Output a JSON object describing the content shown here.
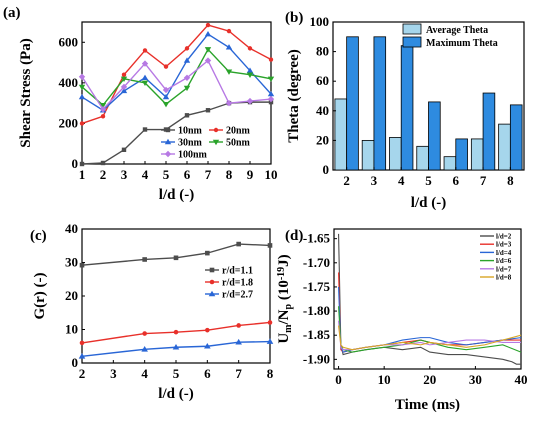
{
  "chart_data": [
    {
      "panel": "(a)",
      "type": "line",
      "xlabel": "l/d (-)",
      "ylabel": "Shear Stress (Pa)",
      "xlim": [
        1,
        10
      ],
      "ylim": [
        0,
        700
      ],
      "xticks": [
        1,
        2,
        3,
        4,
        5,
        6,
        7,
        8,
        9,
        10
      ],
      "yticks": [
        0,
        200,
        400,
        600
      ],
      "legend_position": "bottom-right",
      "x": [
        1,
        2,
        3,
        4,
        5,
        6,
        7,
        8,
        9,
        10
      ],
      "series": [
        {
          "name": "10nm",
          "color": "#4d4d4d",
          "marker": "square",
          "values": [
            0,
            5,
            70,
            170,
            170,
            240,
            265,
            300,
            305,
            305
          ]
        },
        {
          "name": "20nm",
          "color": "#e8302a",
          "marker": "circle",
          "values": [
            200,
            235,
            440,
            560,
            480,
            570,
            685,
            655,
            570,
            515
          ]
        },
        {
          "name": "30nm",
          "color": "#2966d6",
          "marker": "triangle",
          "values": [
            330,
            265,
            360,
            425,
            330,
            510,
            640,
            575,
            460,
            345
          ]
        },
        {
          "name": "50nm",
          "color": "#2aa32a",
          "marker": "triangle-down",
          "values": [
            380,
            290,
            420,
            400,
            295,
            375,
            565,
            455,
            440,
            420
          ]
        },
        {
          "name": "100nm",
          "color": "#b779e4",
          "marker": "diamond",
          "values": [
            430,
            270,
            380,
            495,
            365,
            425,
            510,
            300,
            310,
            320
          ]
        }
      ]
    },
    {
      "panel": "(b)",
      "type": "bar",
      "xlabel": "l/d (-)",
      "ylabel": "Theta (degree)",
      "ylim": [
        0,
        100
      ],
      "yticks": [
        0,
        20,
        40,
        60,
        80,
        100
      ],
      "categories": [
        "2",
        "3",
        "4",
        "5",
        "6",
        "7",
        "8"
      ],
      "legend_position": "top-right",
      "series": [
        {
          "name": "Average Theta",
          "color": "#a6d6ec",
          "values": [
            48,
            20,
            22,
            16,
            9,
            21,
            31
          ]
        },
        {
          "name": "Maximum Theta",
          "color": "#2e8be0",
          "values": [
            90,
            90,
            84,
            46,
            21,
            52,
            44
          ]
        }
      ]
    },
    {
      "panel": "(c)",
      "type": "line",
      "xlabel": "l/d (-)",
      "ylabel": "G(r) (-)",
      "xlim": [
        2,
        8
      ],
      "ylim": [
        0,
        40
      ],
      "xticks": [
        2,
        3,
        4,
        5,
        6,
        7,
        8
      ],
      "yticks": [
        0,
        10,
        20,
        30,
        40
      ],
      "legend_position": "right",
      "x": [
        2,
        4,
        5,
        6,
        7,
        8
      ],
      "series": [
        {
          "name": "r/d=1.1",
          "color": "#4d4d4d",
          "marker": "square",
          "values": [
            29.2,
            30.9,
            31.4,
            32.8,
            35.5,
            35.1
          ]
        },
        {
          "name": "r/d=1.8",
          "color": "#e8302a",
          "marker": "circle",
          "values": [
            6.0,
            8.8,
            9.2,
            9.8,
            11.2,
            12.1
          ]
        },
        {
          "name": "r/d=2.7",
          "color": "#2966d6",
          "marker": "triangle",
          "values": [
            2.0,
            4.1,
            4.7,
            5.0,
            6.2,
            6.4
          ]
        }
      ]
    },
    {
      "panel": "(d)",
      "type": "line",
      "xlabel": "Time (ms)",
      "ylabel": "U_m/N_p (10^-19 J)",
      "ylabel_main": "U",
      "ylabel_sub1": "m",
      "ylabel_mid": "/N",
      "ylabel_sub2": "p",
      "ylabel_unit_a": " (10",
      "ylabel_sup": "-19",
      "ylabel_unit_b": "J)",
      "xlim": [
        -1,
        40
      ],
      "ylim": [
        -1.92,
        -1.63
      ],
      "xticks": [
        0,
        10,
        20,
        30,
        40
      ],
      "yticks": [
        -1.9,
        -1.85,
        -1.8,
        -1.75,
        -1.7,
        -1.65
      ],
      "legend_position": "top-right",
      "series": [
        {
          "name": "l/d=2",
          "color": "#4d4d4d",
          "x": [
            0,
            0.5,
            1,
            3,
            6,
            10,
            14,
            18,
            20,
            24,
            28,
            32,
            36,
            38,
            39,
            40
          ],
          "values": [
            -1.64,
            -1.87,
            -1.89,
            -1.885,
            -1.88,
            -1.875,
            -1.88,
            -1.875,
            -1.885,
            -1.89,
            -1.89,
            -1.895,
            -1.9,
            -1.905,
            -1.91,
            -1.91
          ]
        },
        {
          "name": "l/d=3",
          "color": "#e8302a",
          "x": [
            0,
            0.5,
            1,
            3,
            6,
            10,
            14,
            18,
            20,
            24,
            28,
            32,
            36,
            40
          ],
          "values": [
            -1.72,
            -1.88,
            -1.885,
            -1.88,
            -1.875,
            -1.87,
            -1.865,
            -1.86,
            -1.865,
            -1.87,
            -1.87,
            -1.865,
            -1.86,
            -1.86
          ]
        },
        {
          "name": "l/d=4",
          "color": "#2966d6",
          "x": [
            0,
            0.5,
            1,
            3,
            6,
            10,
            14,
            18,
            20,
            24,
            28,
            32,
            36,
            40
          ],
          "values": [
            -1.75,
            -1.875,
            -1.885,
            -1.88,
            -1.875,
            -1.87,
            -1.86,
            -1.855,
            -1.855,
            -1.865,
            -1.87,
            -1.865,
            -1.86,
            -1.855
          ]
        },
        {
          "name": "l/d=6",
          "color": "#2aa32a",
          "x": [
            0,
            0.5,
            1,
            3,
            6,
            10,
            14,
            18,
            20,
            24,
            28,
            32,
            36,
            40
          ],
          "values": [
            -1.79,
            -1.87,
            -1.88,
            -1.885,
            -1.88,
            -1.875,
            -1.87,
            -1.86,
            -1.865,
            -1.875,
            -1.88,
            -1.875,
            -1.87,
            -1.885
          ]
        },
        {
          "name": "l/d=7",
          "color": "#b779e4",
          "x": [
            0,
            0.5,
            1,
            3,
            6,
            10,
            14,
            18,
            20,
            24,
            28,
            32,
            36,
            40
          ],
          "values": [
            -1.82,
            -1.875,
            -1.88,
            -1.88,
            -1.875,
            -1.87,
            -1.87,
            -1.865,
            -1.87,
            -1.865,
            -1.86,
            -1.86,
            -1.865,
            -1.865
          ]
        },
        {
          "name": "l/d=8",
          "color": "#d9a626",
          "x": [
            0,
            0.5,
            1,
            3,
            6,
            10,
            14,
            18,
            20,
            24,
            28,
            32,
            36,
            40
          ],
          "values": [
            -1.83,
            -1.87,
            -1.875,
            -1.88,
            -1.875,
            -1.87,
            -1.865,
            -1.87,
            -1.865,
            -1.87,
            -1.875,
            -1.87,
            -1.86,
            -1.85
          ]
        }
      ]
    }
  ]
}
